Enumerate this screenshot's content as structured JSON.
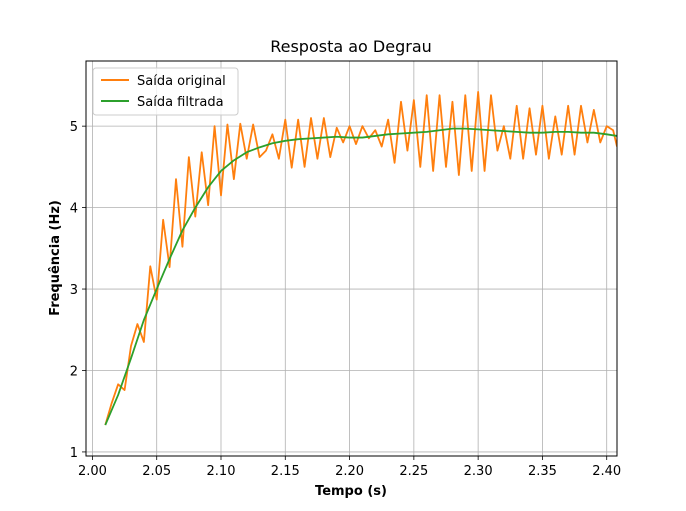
{
  "chart_data": {
    "type": "line",
    "title": "Resposta ao Degrau",
    "xlabel": "Tempo (s)",
    "ylabel": "Frequência (Hz)",
    "xlim": [
      1.995,
      2.408
    ],
    "ylim": [
      0.95,
      5.8
    ],
    "xticks": [
      "2.00",
      "2.05",
      "2.10",
      "2.15",
      "2.20",
      "2.25",
      "2.30",
      "2.35",
      "2.40"
    ],
    "yticks": [
      "1",
      "2",
      "3",
      "4",
      "5"
    ],
    "grid": true,
    "legend": "top-left",
    "series": [
      {
        "name": "Saída original",
        "color": "#ff7f0e",
        "x": [
          2.01,
          2.015,
          2.02,
          2.025,
          2.03,
          2.035,
          2.04,
          2.045,
          2.05,
          2.055,
          2.06,
          2.065,
          2.07,
          2.075,
          2.08,
          2.085,
          2.09,
          2.095,
          2.1,
          2.105,
          2.11,
          2.115,
          2.12,
          2.125,
          2.13,
          2.135,
          2.14,
          2.145,
          2.15,
          2.155,
          2.16,
          2.165,
          2.17,
          2.175,
          2.18,
          2.185,
          2.19,
          2.195,
          2.2,
          2.205,
          2.21,
          2.215,
          2.22,
          2.225,
          2.23,
          2.235,
          2.24,
          2.245,
          2.25,
          2.255,
          2.26,
          2.265,
          2.27,
          2.275,
          2.28,
          2.285,
          2.29,
          2.295,
          2.3,
          2.305,
          2.31,
          2.315,
          2.32,
          2.325,
          2.33,
          2.335,
          2.34,
          2.345,
          2.35,
          2.355,
          2.36,
          2.365,
          2.37,
          2.375,
          2.38,
          2.385,
          2.39,
          2.395,
          2.4,
          2.405,
          2.408
        ],
        "y": [
          1.33,
          1.6,
          1.83,
          1.76,
          2.3,
          2.57,
          2.35,
          3.28,
          2.87,
          3.85,
          3.27,
          4.35,
          3.52,
          4.62,
          3.89,
          4.68,
          4.03,
          5.0,
          4.15,
          5.02,
          4.35,
          5.03,
          4.6,
          5.02,
          4.62,
          4.7,
          4.9,
          4.6,
          5.08,
          4.49,
          5.08,
          4.5,
          5.1,
          4.6,
          5.1,
          4.62,
          4.98,
          4.8,
          5.0,
          4.78,
          5.0,
          4.85,
          4.95,
          4.75,
          5.08,
          4.55,
          5.3,
          4.7,
          5.32,
          4.5,
          5.38,
          4.45,
          5.38,
          4.5,
          5.3,
          4.4,
          5.38,
          4.45,
          5.42,
          4.45,
          5.38,
          4.7,
          5.0,
          4.6,
          5.25,
          4.6,
          5.22,
          4.65,
          5.25,
          4.6,
          5.12,
          4.65,
          5.25,
          4.65,
          5.25,
          4.8,
          5.2,
          4.8,
          5.0,
          4.95,
          4.75
        ]
      },
      {
        "name": "Saída filtrada",
        "color": "#2ca02c",
        "x": [
          2.01,
          2.02,
          2.03,
          2.04,
          2.05,
          2.06,
          2.07,
          2.08,
          2.09,
          2.1,
          2.11,
          2.12,
          2.13,
          2.14,
          2.15,
          2.16,
          2.17,
          2.18,
          2.19,
          2.2,
          2.21,
          2.22,
          2.23,
          2.24,
          2.25,
          2.26,
          2.27,
          2.28,
          2.29,
          2.3,
          2.31,
          2.32,
          2.33,
          2.34,
          2.35,
          2.36,
          2.37,
          2.38,
          2.39,
          2.4,
          2.408
        ],
        "y": [
          1.33,
          1.7,
          2.15,
          2.62,
          3.0,
          3.37,
          3.72,
          4.0,
          4.25,
          4.45,
          4.58,
          4.68,
          4.74,
          4.79,
          4.82,
          4.84,
          4.85,
          4.86,
          4.87,
          4.86,
          4.86,
          4.88,
          4.9,
          4.91,
          4.92,
          4.93,
          4.95,
          4.97,
          4.97,
          4.96,
          4.95,
          4.94,
          4.93,
          4.92,
          4.92,
          4.93,
          4.93,
          4.92,
          4.92,
          4.9,
          4.88
        ]
      }
    ]
  }
}
